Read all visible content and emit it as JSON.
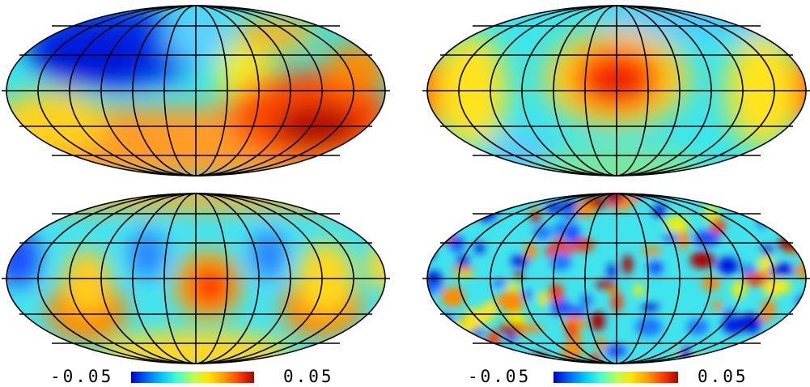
{
  "colorbars": [
    {
      "min_label": "-0.05",
      "max_label": "0.05"
    },
    {
      "min_label": "-0.05",
      "max_label": "0.05"
    }
  ],
  "colors": {
    "deep_blue": "#0018e0",
    "blue": "#1e78ff",
    "cyan": "#28e8ff",
    "yellow": "#f0f000",
    "orange": "#ff9a00",
    "red": "#ff3800",
    "dark_red": "#b00000",
    "grid_line": "#000000",
    "background": "#ffffff"
  }
}
